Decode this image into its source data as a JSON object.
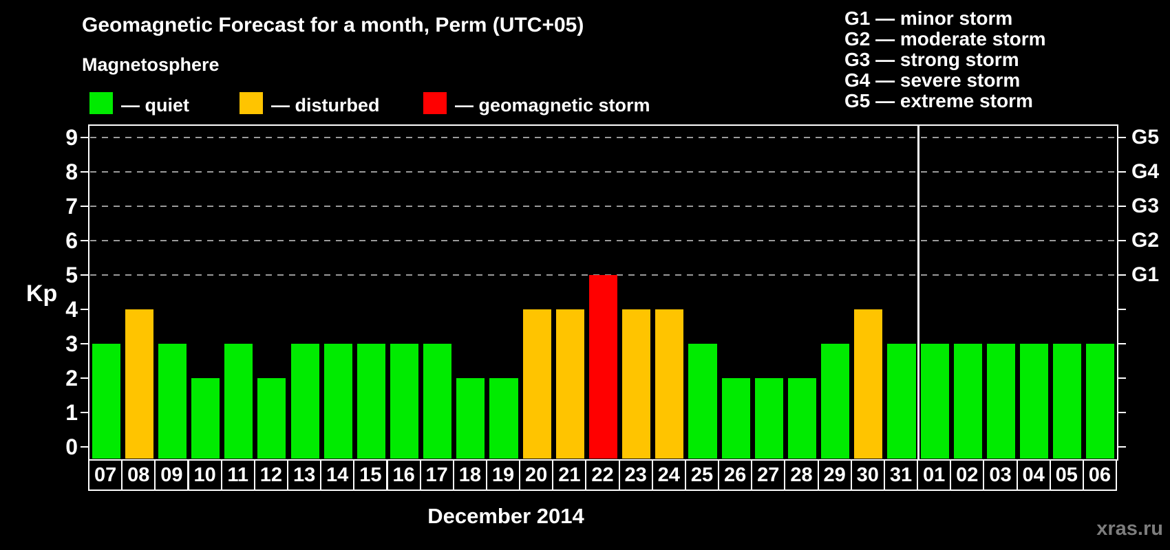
{
  "header": {
    "title": "Geomagnetic Forecast for a month, Perm (UTC+05)"
  },
  "legend": {
    "title": "Magnetosphere",
    "items": [
      {
        "name": "quiet",
        "label": "— quiet",
        "color": "#00EB00"
      },
      {
        "name": "disturbed",
        "label": "— disturbed",
        "color": "#FFC400"
      },
      {
        "name": "storm",
        "label": "— geomagnetic storm",
        "color": "#FF0000"
      }
    ]
  },
  "g_legend": {
    "items": [
      "G1 — minor storm",
      "G2 — moderate storm",
      "G3 — strong storm",
      "G4 — severe storm",
      "G5 — extreme storm"
    ]
  },
  "footer": {
    "watermark": "xras.ru"
  },
  "chart_data": {
    "type": "bar",
    "title": "Geomagnetic Forecast for a month, Perm (UTC+05)",
    "xlabel": "December 2014",
    "ylabel": "Kp",
    "ylim": [
      0,
      9
    ],
    "y_ticks": [
      0,
      1,
      2,
      3,
      4,
      5,
      6,
      7,
      8,
      9
    ],
    "gridlines": [
      5,
      6,
      7,
      8,
      9
    ],
    "grid_style": "dashed",
    "grid_color": "#9b9b9b",
    "right_axis_labels": [
      {
        "label": "G1",
        "value": 5
      },
      {
        "label": "G2",
        "value": 6
      },
      {
        "label": "G3",
        "value": 7
      },
      {
        "label": "G4",
        "value": 8
      },
      {
        "label": "G5",
        "value": 9
      }
    ],
    "categories": [
      "07",
      "08",
      "09",
      "10",
      "11",
      "12",
      "13",
      "14",
      "15",
      "16",
      "17",
      "18",
      "19",
      "20",
      "21",
      "22",
      "23",
      "24",
      "25",
      "26",
      "27",
      "28",
      "29",
      "30",
      "31",
      "01",
      "02",
      "03",
      "04",
      "05",
      "06"
    ],
    "values": [
      3,
      4,
      3,
      2,
      3,
      2,
      3,
      3,
      3,
      3,
      3,
      2,
      2,
      4,
      4,
      5,
      4,
      4,
      3,
      2,
      2,
      2,
      3,
      4,
      3,
      3,
      3,
      3,
      3,
      3,
      3
    ],
    "statuses": [
      "quiet",
      "disturbed",
      "quiet",
      "quiet",
      "quiet",
      "quiet",
      "quiet",
      "quiet",
      "quiet",
      "quiet",
      "quiet",
      "quiet",
      "quiet",
      "disturbed",
      "disturbed",
      "storm",
      "disturbed",
      "disturbed",
      "quiet",
      "quiet",
      "quiet",
      "quiet",
      "quiet",
      "disturbed",
      "quiet",
      "quiet",
      "quiet",
      "quiet",
      "quiet",
      "quiet",
      "quiet"
    ],
    "colors": {
      "quiet": "#00EB00",
      "disturbed": "#FFC400",
      "storm": "#FF0000"
    },
    "month_boundary_after": "31",
    "legend_position": "top"
  }
}
